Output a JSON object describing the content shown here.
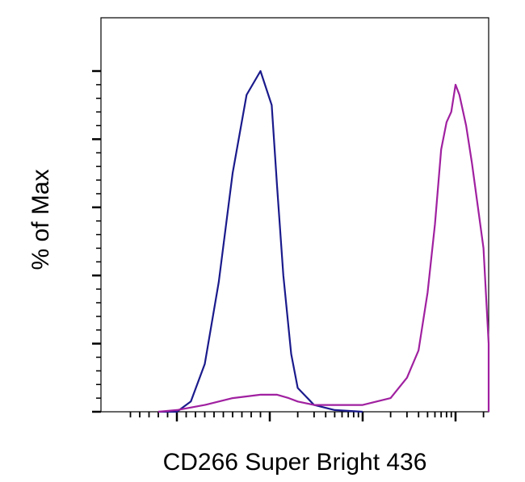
{
  "chart_data": {
    "type": "line",
    "title": "",
    "xlabel": "CD266 Super Bright 436",
    "ylabel": "% of Max",
    "x_scale": "log",
    "y_tick_labels_shown": false,
    "x_tick_labels_shown": false,
    "ylim": [
      0,
      100
    ],
    "grid": false,
    "legend": "none",
    "series": [
      {
        "color": "#1a1a8c",
        "x": [
          -200,
          0,
          150,
          300,
          450,
          600,
          750,
          900,
          1050,
          1200,
          1400,
          1700,
          2000,
          3000,
          5000,
          10000
        ],
        "y": [
          0,
          0,
          3,
          14,
          38,
          70,
          93,
          100,
          90,
          66,
          40,
          17,
          7,
          2,
          0.5,
          0
        ]
      },
      {
        "color": "#a020a0",
        "x": [
          -200,
          0,
          300,
          600,
          900,
          1200,
          1600,
          2000,
          3000,
          5000,
          10000,
          20000,
          30000,
          40000,
          50000,
          60000,
          70000,
          80000,
          90000,
          100000,
          110000,
          130000,
          150000,
          200000,
          250000,
          300000,
          350000,
          400000
        ],
        "y": [
          0,
          0.5,
          2,
          4,
          5,
          5,
          4,
          3,
          2,
          2,
          2,
          4,
          10,
          18,
          35,
          55,
          77,
          85,
          88,
          96,
          93,
          84,
          73,
          48,
          20,
          5,
          1,
          0
        ]
      }
    ]
  }
}
